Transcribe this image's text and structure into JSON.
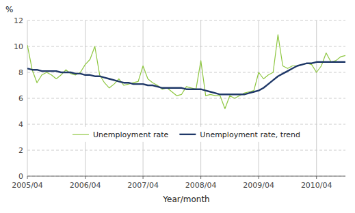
{
  "chart_data": {
    "type": "line",
    "xlabel": "Year/month",
    "ylabel": "%",
    "categories": [
      "2005/04",
      null,
      null,
      null,
      null,
      null,
      null,
      null,
      null,
      null,
      null,
      null,
      "2006/04",
      null,
      null,
      null,
      null,
      null,
      null,
      null,
      null,
      null,
      null,
      null,
      "2007/04",
      null,
      null,
      null,
      null,
      null,
      null,
      null,
      null,
      null,
      null,
      null,
      "2008/04",
      null,
      null,
      null,
      null,
      null,
      null,
      null,
      null,
      null,
      null,
      null,
      "2009/04",
      null,
      null,
      null,
      null,
      null,
      null,
      null,
      null,
      null,
      null,
      null,
      "2010/04",
      null,
      null,
      null,
      null,
      null,
      null
    ],
    "series": [
      {
        "name": "Unemployment rate",
        "color": "#8dc63f",
        "values": [
          10.1,
          8.2,
          7.2,
          7.8,
          8.0,
          7.8,
          7.5,
          7.8,
          8.2,
          7.9,
          7.8,
          8.0,
          8.6,
          9.0,
          10.0,
          7.8,
          7.2,
          6.8,
          7.1,
          7.5,
          7.0,
          7.1,
          7.2,
          7.3,
          8.5,
          7.5,
          7.2,
          7.0,
          6.7,
          6.8,
          6.5,
          6.2,
          6.3,
          6.9,
          6.8,
          6.7,
          8.9,
          6.2,
          6.3,
          6.2,
          6.2,
          5.2,
          6.2,
          6.0,
          6.2,
          6.4,
          6.5,
          6.6,
          8.0,
          7.5,
          7.8,
          8.0,
          10.9,
          8.5,
          8.3,
          8.5,
          8.5,
          8.6,
          8.7,
          8.6,
          8.0,
          8.5,
          9.5,
          8.8,
          8.9,
          9.2,
          9.3
        ]
      },
      {
        "name": "Unemployment rate, trend",
        "color": "#1f3868",
        "values": [
          8.3,
          8.2,
          8.2,
          8.1,
          8.1,
          8.1,
          8.1,
          8.0,
          8.0,
          8.0,
          7.9,
          7.9,
          7.8,
          7.8,
          7.7,
          7.7,
          7.6,
          7.5,
          7.4,
          7.3,
          7.2,
          7.2,
          7.1,
          7.1,
          7.1,
          7.0,
          7.0,
          6.9,
          6.8,
          6.8,
          6.8,
          6.8,
          6.8,
          6.7,
          6.7,
          6.7,
          6.7,
          6.6,
          6.5,
          6.4,
          6.3,
          6.3,
          6.3,
          6.3,
          6.3,
          6.3,
          6.4,
          6.5,
          6.6,
          6.8,
          7.1,
          7.4,
          7.7,
          7.9,
          8.1,
          8.3,
          8.5,
          8.6,
          8.7,
          8.7,
          8.8,
          8.8,
          8.8,
          8.8,
          8.8,
          8.8,
          8.8
        ]
      }
    ],
    "ylim": [
      0,
      12
    ],
    "yticks": [
      0,
      2,
      4,
      6,
      8,
      10,
      12
    ],
    "grid": true,
    "legend": "lower center"
  }
}
